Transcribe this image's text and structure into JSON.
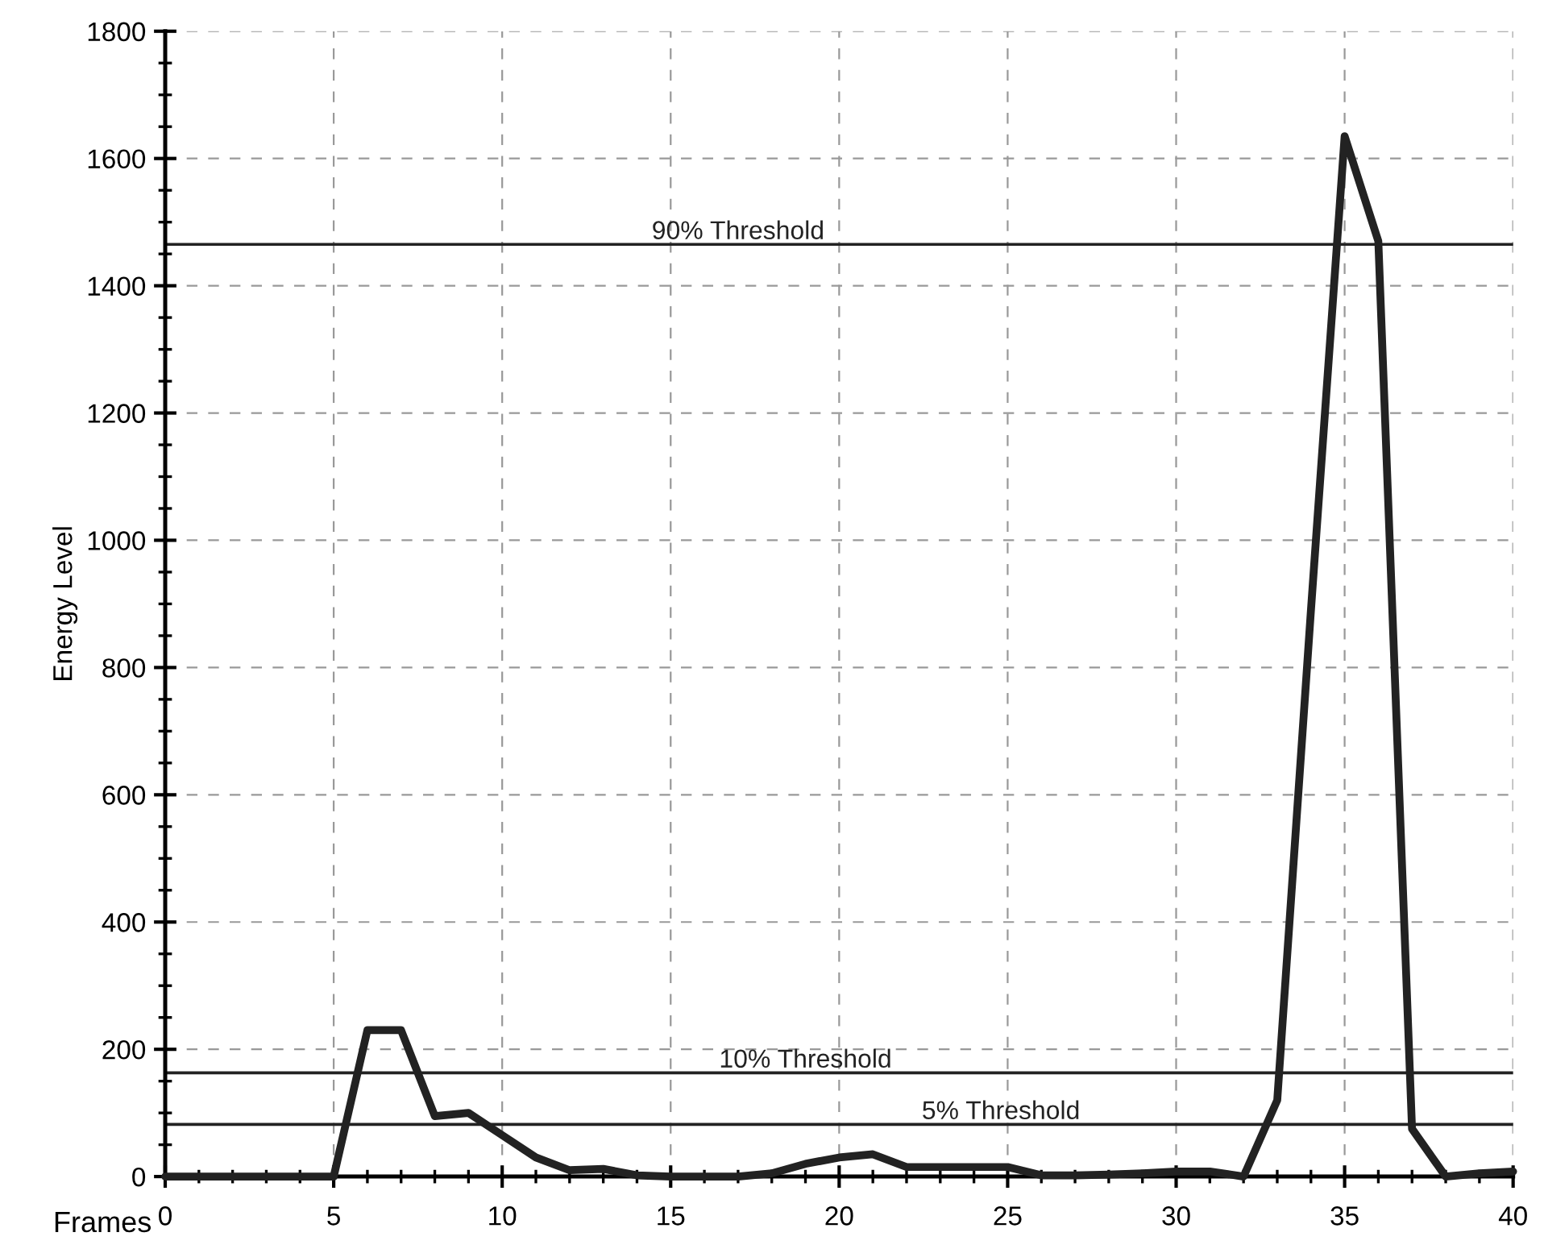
{
  "chart_data": {
    "type": "line",
    "xlabel": "Frames",
    "ylabel": "Energy Level",
    "x": [
      0,
      1,
      2,
      3,
      4,
      5,
      6,
      7,
      8,
      9,
      10,
      11,
      12,
      13,
      14,
      15,
      16,
      17,
      18,
      19,
      20,
      21,
      22,
      23,
      24,
      25,
      26,
      27,
      28,
      29,
      30,
      31,
      32,
      33,
      34,
      35,
      36,
      37,
      38,
      39,
      40
    ],
    "series": [
      {
        "color": "#222222",
        "values": [
          0,
          0,
          0,
          0,
          0,
          0,
          230,
          230,
          95,
          100,
          65,
          30,
          10,
          12,
          2,
          0,
          0,
          0,
          5,
          20,
          30,
          35,
          15,
          15,
          15,
          15,
          2,
          2,
          3,
          5,
          8,
          8,
          0,
          120,
          890,
          1635,
          1470,
          75,
          0,
          5,
          8
        ]
      }
    ],
    "xlim": [
      0,
      40
    ],
    "xticks": [
      0,
      5,
      10,
      15,
      20,
      25,
      30,
      35,
      40
    ],
    "ylim": [
      0,
      1800
    ],
    "yticks": [
      0,
      200,
      400,
      600,
      800,
      1000,
      1200,
      1400,
      1600,
      1800
    ],
    "ref_lines": [
      {
        "axis": "y",
        "value": 1465,
        "label": "90% Threshold",
        "color": "#222222"
      },
      {
        "axis": "y",
        "value": 163,
        "label": "10% Threshold",
        "color": "#222222"
      },
      {
        "axis": "y",
        "value": 82,
        "label": "5% Threshold",
        "color": "#222222"
      }
    ],
    "grid": true,
    "marker": "none",
    "line_style": "solid"
  }
}
